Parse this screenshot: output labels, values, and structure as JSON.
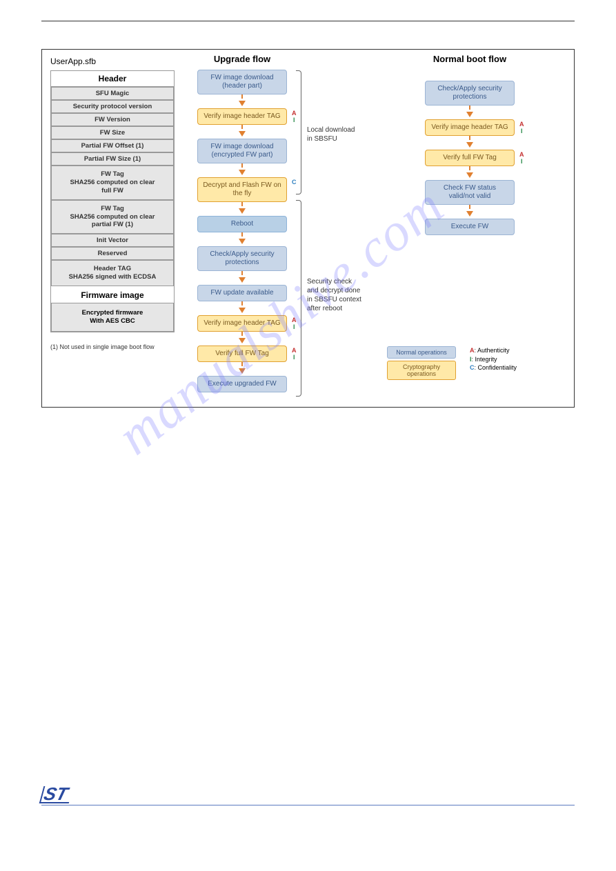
{
  "left": {
    "file_label": "UserApp.sfb",
    "header_title": "Header",
    "cells": [
      "SFU Magic",
      "Security protocol version",
      "FW Version",
      "FW Size",
      "Partial FW Offset (1)",
      "Partial FW Size (1)",
      "FW Tag\nSHA256 computed on clear\nfull FW",
      "FW Tag\nSHA256 computed on clear\npartial FW (1)",
      "Init Vector",
      "Reserved",
      "Header TAG\nSHA256 signed with ECDSA"
    ],
    "fw_title": "Firmware image",
    "enc_cell": "Encrypted firmware\nWith AES CBC",
    "footnote": "(1) Not used in single image boot flow"
  },
  "upgrade": {
    "title": "Upgrade flow",
    "steps": [
      {
        "text": "FW image download (header part)",
        "style": "blue"
      },
      {
        "text": "Verify image header TAG",
        "style": "yellow",
        "tag": "AI"
      },
      {
        "text": "FW image download (encrypted FW part)",
        "style": "blue"
      },
      {
        "text": "Decrypt and Flash FW on the fly",
        "style": "yellow",
        "tag": "C"
      },
      {
        "text": "Reboot",
        "style": "cyan"
      },
      {
        "text": "Check/Apply security protections",
        "style": "blue"
      },
      {
        "text": "FW update available",
        "style": "blue"
      },
      {
        "text": "Verify image header TAG",
        "style": "yellow",
        "tag": "AI"
      },
      {
        "text": "Verify full FW Tag",
        "style": "yellow",
        "tag": "AI"
      },
      {
        "text": "Execute upgraded FW",
        "style": "blue"
      }
    ]
  },
  "normal": {
    "title": "Normal boot flow",
    "steps": [
      {
        "text": "Check/Apply security protections",
        "style": "blue"
      },
      {
        "text": "Verify image header TAG",
        "style": "yellow",
        "tag": "AI"
      },
      {
        "text": "Verify full FW Tag",
        "style": "yellow",
        "tag": "AI"
      },
      {
        "text": "Check FW status valid/not valid",
        "style": "blue"
      },
      {
        "text": "Execute FW",
        "style": "blue"
      }
    ]
  },
  "brackets": {
    "b1": "Local download\nin SBSFU",
    "b2": "Security check\nand decrypt done\nin SBSFU context\nafter reboot"
  },
  "legend": {
    "normal_ops": "Normal operations",
    "crypto_ops": "Cryptography operations",
    "a": "Authenticity",
    "i": "Integrity",
    "c": "Confidentiality"
  },
  "watermark": "manualshive.com",
  "colors": {
    "blue_fill": "#c8d6e8",
    "blue_border": "#9bb4d4",
    "yellow_fill": "#ffe9a8",
    "yellow_border": "#e0a030",
    "arrow": "#e08030",
    "a": "#c43030",
    "i": "#2a8a4a",
    "c": "#3080c0"
  }
}
